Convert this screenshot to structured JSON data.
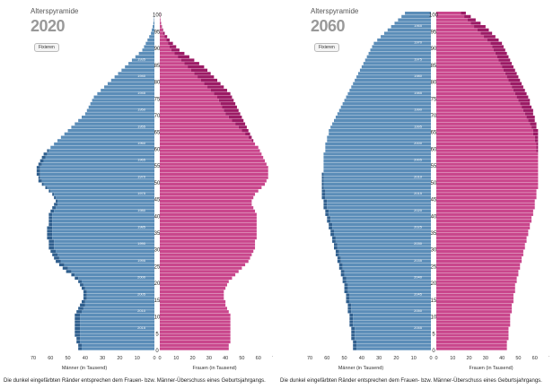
{
  "colors": {
    "male": "#5b8db8",
    "male_dark": "#2f5f8e",
    "female": "#c9468c",
    "female_dark": "#9c1a65",
    "grid": "#ffffff"
  },
  "panels": [
    {
      "title": "Alterspyramide",
      "year": "2020",
      "button": "Fixieren",
      "male_axis_label": "Männer (in Tausend)",
      "female_axis_label": "Frauen (in Tausend)",
      "footnote": "Die dunkel eingefärbten Ränder entsprechen dem Frauen- bzw. Männer-Überschuss eines Geburtsjahrgangs.",
      "age_ticks": [
        "0",
        "5",
        "10",
        "15",
        "20",
        "25",
        "30",
        "35",
        "40",
        "45",
        "50",
        "55",
        "60",
        "65",
        "70",
        "75",
        "80",
        "85",
        "90",
        "95",
        "100"
      ],
      "cohort_labels": [
        "2020",
        "2015",
        "2010",
        "2005",
        "2000",
        "1995",
        "1990",
        "1985",
        "1980",
        "1975",
        "1970",
        "1965",
        "1960",
        "1955",
        "1950",
        "1945",
        "1940",
        "1935",
        "1930",
        "1925",
        "1920"
      ],
      "x_ticks": [
        "70",
        "60",
        "50",
        "40",
        "30",
        "20",
        "10",
        "0"
      ]
    },
    {
      "title": "Alterspyramide",
      "year": "2060",
      "button": "Fixieren",
      "male_axis_label": "Männer (in Tausend)",
      "female_axis_label": "Frauen (in Tausend)",
      "footnote": "Die dunkel eingefärbten Ränder entsprechen dem Frauen- bzw. Männer-Überschuss eines Geburtsjahrgangs.",
      "age_ticks": [
        "0",
        "5",
        "10",
        "15",
        "20",
        "25",
        "30",
        "35",
        "40",
        "45",
        "50",
        "55",
        "60",
        "65",
        "70",
        "75",
        "80",
        "85",
        "90",
        "95",
        "100"
      ],
      "cohort_labels": [
        "2060",
        "2055",
        "2050",
        "2045",
        "2040",
        "2035",
        "2030",
        "2025",
        "2020",
        "2015",
        "2010",
        "2005",
        "2000",
        "1995",
        "1990",
        "1985",
        "1980",
        "1975",
        "1970",
        "1965",
        "1960"
      ],
      "x_ticks": [
        "70",
        "60",
        "50",
        "40",
        "30",
        "20",
        "10",
        "0"
      ]
    }
  ],
  "chart_data": [
    {
      "type": "bar",
      "title": "2020",
      "xlabel": "Männer (in Tausend) / Frauen (in Tausend)",
      "ylabel": "",
      "xlim": [
        0,
        70
      ],
      "ylim": [
        0,
        100
      ],
      "orientation": "horizontal-pyramid",
      "ages": "0..100",
      "series": [
        {
          "name": "Männer (in Tausend)",
          "values": [
            44,
            44,
            45,
            45,
            46,
            46,
            46,
            46,
            46,
            46,
            46,
            45,
            44,
            43,
            42,
            41,
            41,
            41,
            42,
            43,
            44,
            46,
            48,
            51,
            53,
            55,
            57,
            58,
            59,
            60,
            61,
            61,
            61,
            62,
            62,
            62,
            62,
            61,
            61,
            61,
            61,
            60,
            59,
            58,
            57,
            58,
            59,
            61,
            63,
            65,
            67,
            67,
            68,
            68,
            68,
            67,
            66,
            65,
            64,
            62,
            60,
            58,
            56,
            54,
            52,
            50,
            48,
            46,
            44,
            42,
            40,
            39,
            38,
            37,
            36,
            35,
            33,
            31,
            29,
            27,
            25,
            23,
            21,
            19,
            17,
            15,
            13,
            11,
            9,
            7,
            6,
            5,
            4,
            3,
            2,
            1.5,
            1,
            0.6,
            0.3,
            0.2,
            0.1
          ]
        },
        {
          "name": "Frauen (in Tausend)",
          "values": [
            42,
            42,
            43,
            43,
            43,
            43,
            43,
            43,
            43,
            43,
            43,
            42,
            41,
            40,
            40,
            39,
            39,
            39,
            40,
            41,
            42,
            44,
            46,
            48,
            50,
            52,
            54,
            55,
            56,
            57,
            58,
            58,
            58,
            59,
            59,
            59,
            59,
            59,
            59,
            59,
            59,
            58,
            57,
            56,
            56,
            57,
            58,
            60,
            62,
            64,
            65,
            66,
            66,
            66,
            66,
            65,
            64,
            63,
            62,
            61,
            60,
            58,
            57,
            56,
            55,
            54,
            53,
            52,
            51,
            50,
            49,
            48,
            47,
            46,
            45,
            44,
            43,
            41,
            39,
            37,
            35,
            33,
            31,
            29,
            27,
            24,
            21,
            18,
            15,
            12,
            10,
            8,
            6,
            4.5,
            3,
            2,
            1.3,
            0.8,
            0.4,
            0.2,
            0.1
          ]
        }
      ]
    },
    {
      "type": "bar",
      "title": "2060",
      "xlabel": "Männer (in Tausend) / Frauen (in Tausend)",
      "ylabel": "",
      "xlim": [
        0,
        70
      ],
      "ylim": [
        0,
        100
      ],
      "orientation": "horizontal-pyramid",
      "ages": "0..100",
      "series": [
        {
          "name": "Männer (in Tausend)",
          "values": [
            45,
            45,
            45,
            46,
            46,
            46,
            46,
            47,
            47,
            47,
            47,
            48,
            48,
            48,
            49,
            49,
            49,
            50,
            50,
            50,
            51,
            51,
            52,
            52,
            53,
            53,
            54,
            54,
            55,
            55,
            56,
            56,
            57,
            57,
            58,
            58,
            59,
            59,
            60,
            60,
            61,
            61,
            62,
            62,
            62,
            63,
            63,
            63,
            63,
            63,
            63,
            63,
            63,
            62,
            62,
            62,
            62,
            62,
            62,
            61,
            61,
            61,
            60,
            60,
            59,
            59,
            58,
            57,
            56,
            55,
            54,
            53,
            52,
            51,
            50,
            49,
            48,
            47,
            46,
            45,
            44,
            43,
            42,
            41,
            40,
            39,
            38,
            37,
            36,
            35,
            34,
            33,
            31,
            29,
            27,
            25,
            23,
            21,
            19,
            17,
            15
          ]
        },
        {
          "name": "Frauen (in Tausend)",
          "values": [
            43,
            43,
            43,
            44,
            44,
            44,
            44,
            45,
            45,
            45,
            45,
            46,
            46,
            46,
            47,
            47,
            47,
            48,
            48,
            48,
            49,
            49,
            50,
            50,
            51,
            51,
            52,
            52,
            53,
            53,
            54,
            54,
            55,
            55,
            56,
            56,
            57,
            57,
            58,
            58,
            59,
            59,
            60,
            60,
            60,
            61,
            61,
            61,
            62,
            62,
            62,
            62,
            62,
            62,
            62,
            62,
            62,
            62,
            62,
            62,
            62,
            62,
            62,
            62,
            62,
            62,
            61,
            61,
            60,
            60,
            59,
            59,
            58,
            57,
            57,
            56,
            55,
            54,
            53,
            52,
            51,
            50,
            49,
            48,
            47,
            46,
            45,
            44,
            43,
            42,
            41,
            40,
            38,
            36,
            34,
            32,
            30,
            27,
            24,
            21,
            18
          ]
        }
      ]
    }
  ]
}
